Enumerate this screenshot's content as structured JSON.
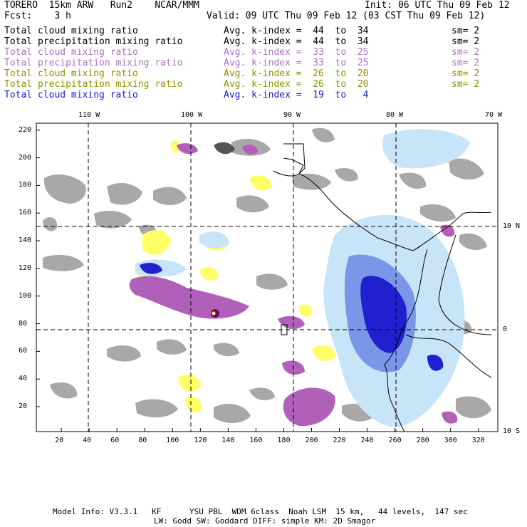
{
  "header": {
    "model": "TORERO  15km ARW   Run2    NCAR/MMM",
    "init": "Init: 06 UTC Thu 09 Feb 12",
    "fcst": "Fcst:    3 h",
    "valid": "Valid: 09 UTC Thu 09 Feb 12 (03 CST Thu 09 Feb 12)"
  },
  "legend": [
    {
      "name": "Total cloud mixing ratio",
      "kindex": "Avg. k-index =  44  to  34",
      "sm": "sm= 2",
      "color": "#000000"
    },
    {
      "name": "Total precipitation mixing ratio",
      "kindex": "Avg. k-index =  44  to  34",
      "sm": "sm= 2",
      "color": "#000000"
    },
    {
      "name": "Total cloud mixing ratio",
      "kindex": "Avg. k-index =  33  to  25",
      "sm": "sm= 2",
      "color": "#b070c0"
    },
    {
      "name": "Total precipitation mixing ratio",
      "kindex": "Avg. k-index =  33  to  25",
      "sm": "sm= 2",
      "color": "#b070c0"
    },
    {
      "name": "Total cloud mixing ratio",
      "kindex": "Avg. k-index =  26  to  20",
      "sm": "sm= 2",
      "color": "#909000"
    },
    {
      "name": "Total precipitation mixing ratio",
      "kindex": "Avg. k-index =  26  to  20",
      "sm": "sm= 2",
      "color": "#909000"
    },
    {
      "name": "Total cloud mixing ratio",
      "kindex": "Avg. k-index =  19  to   4",
      "sm": "",
      "color": "#1a1ad0"
    }
  ],
  "map": {
    "lon_labels": [
      "110 W",
      "100 W",
      "90 W",
      "80 W",
      "70 W"
    ],
    "lat_labels": [
      "10 N",
      "0",
      "10 S"
    ],
    "y_ticks": [
      "220",
      "200",
      "180",
      "160",
      "140",
      "120",
      "100",
      "80",
      "60",
      "40",
      "20"
    ],
    "x_ticks": [
      "20",
      "40",
      "60",
      "80",
      "100",
      "120",
      "140",
      "160",
      "180",
      "200",
      "220",
      "240",
      "260",
      "280",
      "300",
      "320"
    ]
  },
  "footer": {
    "line1": "Model Info: V3.3.1   KF      YSU PBL  WDM 6class  Noah LSM  15 km,   44 levels,  147 sec",
    "line2": "LW: Godd SW: Goddard DIFF: simple KM: 2D Smagor"
  }
}
